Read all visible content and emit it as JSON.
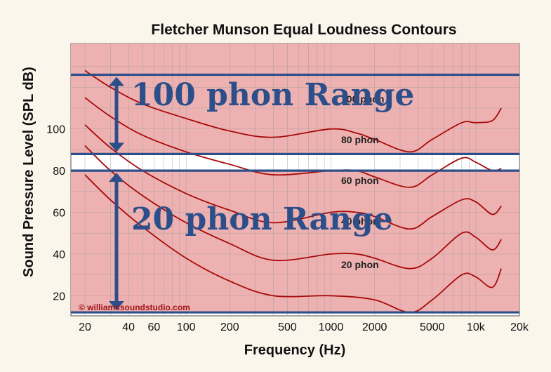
{
  "chart_data": {
    "type": "line",
    "title": "Fletcher Munson Equal Loudness Contours",
    "xlabel": "Frequency (Hz)",
    "ylabel": "Sound Pressure Level (SPL dB)",
    "x_scale": "log",
    "xlim": [
      16,
      20000
    ],
    "ylim": [
      0,
      130
    ],
    "x_ticks": [
      20,
      40,
      60,
      100,
      200,
      500,
      1000,
      2000,
      5000,
      10000,
      20000
    ],
    "x_tick_labels": [
      "20",
      "40",
      "60",
      "100",
      "200",
      "500",
      "1000",
      "2000",
      "5000",
      "10k",
      "20k"
    ],
    "y_ticks": [
      20,
      40,
      60,
      80,
      100
    ],
    "y_tick_labels": [
      "20",
      "40",
      "60",
      "80",
      "100"
    ],
    "grid": true,
    "series": [
      {
        "name": "20 phon",
        "x": [
          20,
          30,
          50,
          100,
          200,
          400,
          1000,
          2000,
          3500,
          5000,
          8000,
          10000,
          13000,
          15000
        ],
        "y": [
          78,
          66,
          53,
          38,
          27,
          20,
          20,
          18,
          12,
          18,
          30,
          29,
          24,
          33
        ]
      },
      {
        "name": "40 phon",
        "x": [
          20,
          30,
          50,
          100,
          200,
          400,
          1000,
          1500,
          2000,
          3500,
          5000,
          8000,
          10000,
          13000,
          15000
        ],
        "y": [
          92,
          80,
          68,
          55,
          45,
          37,
          40,
          40,
          38,
          33,
          38,
          50,
          48,
          42,
          47
        ]
      },
      {
        "name": "60 phon",
        "x": [
          20,
          30,
          50,
          100,
          200,
          400,
          1000,
          1500,
          2000,
          3500,
          5000,
          8000,
          10000,
          13000,
          15000
        ],
        "y": [
          102,
          91,
          80,
          69,
          61,
          55,
          60,
          60,
          58,
          52,
          58,
          66,
          65,
          59,
          63
        ]
      },
      {
        "name": "80 phon",
        "x": [
          20,
          30,
          50,
          100,
          200,
          400,
          1000,
          1500,
          2000,
          3500,
          5000,
          8000,
          10000,
          13000,
          15000
        ],
        "y": [
          115,
          106,
          97,
          89,
          83,
          78,
          80,
          80,
          77,
          72,
          78,
          86,
          84,
          80,
          81
        ]
      },
      {
        "name": "100 phon",
        "x": [
          20,
          30,
          50,
          100,
          200,
          400,
          1000,
          1500,
          2000,
          3500,
          5000,
          8000,
          10000,
          13000,
          15000
        ],
        "y": [
          128,
          120,
          112,
          105,
          99,
          96,
          100,
          98,
          95,
          89,
          95,
          103,
          103,
          104,
          110
        ]
      }
    ],
    "annotations": [
      {
        "text": "100 phon Range",
        "y_from": 88,
        "y_to": 126
      },
      {
        "text": "20 phon Range",
        "y_from": 12,
        "y_to": 80
      }
    ],
    "copyright": "© williamssoundstudio.com"
  },
  "colors": {
    "band": "#eeb1b1",
    "gap": "#ffffff",
    "curve": "#a80a0a",
    "band_line": "#2c4f8a",
    "arrow": "#2c4f8a",
    "background": "#fbf6ec"
  }
}
